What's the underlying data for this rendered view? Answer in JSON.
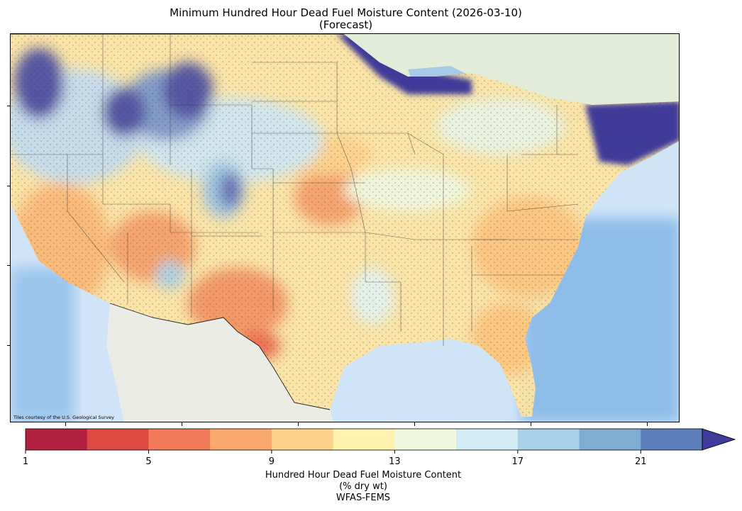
{
  "title_line1": "Minimum Hundred Hour Dead Fuel Moisture Content (2026-03-10)",
  "title_line2": "(Forecast)",
  "attribution": "Tiles courtesy of the U.S. Geological Survey",
  "colorbar": {
    "tick_labels": [
      "1",
      "5",
      "9",
      "13",
      "17",
      "21"
    ],
    "tick_values": [
      1,
      5,
      9,
      13,
      17,
      21
    ],
    "range": [
      1,
      23
    ],
    "extend": "max",
    "colors": [
      "#b2213f",
      "#dc4a41",
      "#f07a59",
      "#f9a96c",
      "#fdd38c",
      "#fff1ae",
      "#f0f8e0",
      "#d3ebf4",
      "#a9d0e6",
      "#7fadd2",
      "#5e7dbb",
      "#3f3b9a"
    ],
    "label_line1": "Hundred Hour Dead Fuel Moisture Content",
    "label_line2": "(% dry wt)",
    "label_line3": "WFAS-FEMS"
  }
}
